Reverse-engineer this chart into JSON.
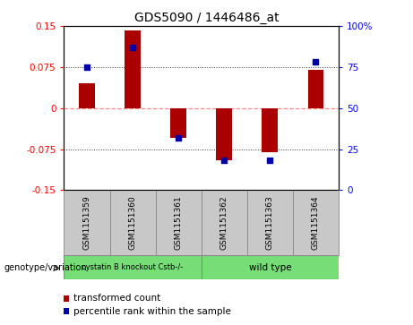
{
  "title": "GDS5090 / 1446486_at",
  "samples": [
    "GSM1151359",
    "GSM1151360",
    "GSM1151361",
    "GSM1151362",
    "GSM1151363",
    "GSM1151364"
  ],
  "red_values": [
    0.045,
    0.142,
    -0.055,
    -0.095,
    -0.08,
    0.07
  ],
  "blue_percentiles": [
    75,
    87,
    32,
    18,
    18,
    78
  ],
  "ylim_left": [
    -0.15,
    0.15
  ],
  "ylim_right": [
    0,
    100
  ],
  "yticks_left": [
    -0.15,
    -0.075,
    0,
    0.075,
    0.15
  ],
  "yticks_right": [
    0,
    25,
    50,
    75,
    100
  ],
  "ytick_labels_left": [
    "-0.15",
    "-0.075",
    "0",
    "0.075",
    "0.15"
  ],
  "ytick_labels_right": [
    "0",
    "25",
    "50",
    "75",
    "100%"
  ],
  "group1_label": "cystatin B knockout Cstb-/-",
  "group2_label": "wild type",
  "group1_indices": [
    0,
    1,
    2
  ],
  "group2_indices": [
    3,
    4,
    5
  ],
  "group1_color": "#77DD77",
  "group2_color": "#77DD77",
  "sample_bg_color": "#C8C8C8",
  "bar_color": "#AA0000",
  "dot_color": "#0000AA",
  "bar_width": 0.35,
  "dot_size": 22,
  "legend_label_red": "transformed count",
  "legend_label_blue": "percentile rank within the sample",
  "genotype_label": "genotype/variation",
  "zero_line_color": "#FF8888",
  "grid_color": "#333333",
  "plot_bg_color": "white",
  "title_fontsize": 10,
  "tick_fontsize": 7.5,
  "sample_label_fontsize": 6.5,
  "geno_fontsize": 7.5,
  "legend_fontsize": 7.5
}
